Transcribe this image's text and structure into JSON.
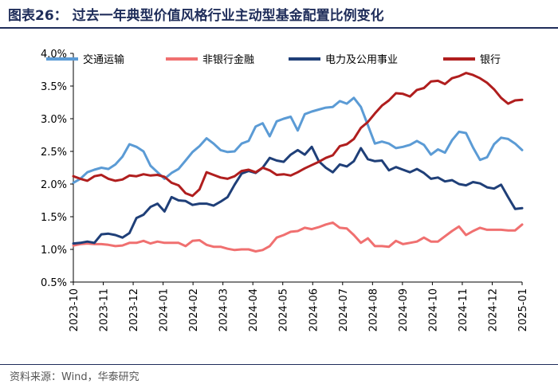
{
  "title": "图表26：  过去一年典型价值风格行业主动型基金配置比例变化",
  "source": "资料来源：Wind，华泰研究",
  "chart_data": {
    "type": "line",
    "xlabel": "",
    "ylabel": "",
    "ylim": [
      0.5,
      4.0
    ],
    "yticks": [
      "0.5%",
      "1.0%",
      "1.5%",
      "2.0%",
      "2.5%",
      "3.0%",
      "3.5%",
      "4.0%"
    ],
    "xticks": [
      "2023-10",
      "2023-11",
      "2023-12",
      "2024-01",
      "2024-02",
      "2024-03",
      "2024-04",
      "2024-05",
      "2024-06",
      "2024-07",
      "2024-08",
      "2024-09",
      "2024-10",
      "2024-11",
      "2024-12",
      "2025-01"
    ],
    "grid": false,
    "legend_position": "top",
    "series": [
      {
        "name": "交通运输",
        "color": "#5b9bd5",
        "values": [
          2.02,
          2.08,
          2.18,
          2.22,
          2.25,
          2.23,
          2.3,
          2.42,
          2.61,
          2.57,
          2.5,
          2.28,
          2.18,
          2.08,
          2.17,
          2.23,
          2.36,
          2.49,
          2.58,
          2.7,
          2.62,
          2.52,
          2.49,
          2.5,
          2.62,
          2.66,
          2.88,
          2.93,
          2.73,
          2.96,
          3.0,
          3.03,
          2.82,
          3.07,
          3.11,
          3.14,
          3.17,
          3.18,
          3.27,
          3.23,
          3.32,
          3.18,
          2.9,
          2.62,
          2.65,
          2.62,
          2.55,
          2.57,
          2.6,
          2.66,
          2.6,
          2.45,
          2.53,
          2.48,
          2.67,
          2.8,
          2.78,
          2.56,
          2.37,
          2.41,
          2.61,
          2.71,
          2.69,
          2.62,
          2.52
        ]
      },
      {
        "name": "非银行金融",
        "color": "#f07070",
        "values": [
          1.06,
          1.08,
          1.09,
          1.08,
          1.08,
          1.07,
          1.05,
          1.06,
          1.1,
          1.1,
          1.13,
          1.09,
          1.12,
          1.1,
          1.1,
          1.1,
          1.05,
          1.13,
          1.14,
          1.07,
          1.04,
          1.04,
          1.01,
          0.99,
          1.0,
          1.0,
          0.97,
          0.99,
          1.05,
          1.18,
          1.22,
          1.27,
          1.28,
          1.33,
          1.31,
          1.34,
          1.38,
          1.41,
          1.33,
          1.32,
          1.22,
          1.1,
          1.17,
          1.05,
          1.05,
          1.04,
          1.13,
          1.08,
          1.1,
          1.12,
          1.18,
          1.12,
          1.12,
          1.2,
          1.28,
          1.35,
          1.22,
          1.28,
          1.33,
          1.3,
          1.3,
          1.3,
          1.29,
          1.29,
          1.38
        ]
      },
      {
        "name": "电力及公用事业",
        "color": "#1f3f78",
        "values": [
          1.09,
          1.1,
          1.12,
          1.1,
          1.23,
          1.24,
          1.22,
          1.18,
          1.25,
          1.48,
          1.53,
          1.65,
          1.7,
          1.58,
          1.8,
          1.75,
          1.74,
          1.68,
          1.7,
          1.7,
          1.67,
          1.73,
          1.8,
          1.99,
          2.16,
          2.2,
          2.17,
          2.25,
          2.4,
          2.36,
          2.34,
          2.45,
          2.52,
          2.45,
          2.57,
          2.35,
          2.25,
          2.18,
          2.3,
          2.27,
          2.35,
          2.55,
          2.38,
          2.35,
          2.36,
          2.21,
          2.26,
          2.22,
          2.18,
          2.23,
          2.17,
          2.08,
          2.1,
          2.04,
          2.06,
          2.0,
          1.98,
          2.03,
          2.01,
          1.95,
          1.93,
          1.99,
          1.8,
          1.62,
          1.63
        ]
      },
      {
        "name": "银行",
        "color": "#b01e1e",
        "values": [
          2.12,
          2.08,
          2.05,
          2.12,
          2.14,
          2.08,
          2.05,
          2.07,
          2.13,
          2.12,
          2.15,
          2.13,
          2.14,
          2.11,
          2.02,
          1.98,
          1.86,
          1.82,
          1.92,
          2.18,
          2.14,
          2.1,
          2.08,
          2.12,
          2.2,
          2.22,
          2.18,
          2.25,
          2.21,
          2.14,
          2.15,
          2.13,
          2.18,
          2.24,
          2.29,
          2.34,
          2.4,
          2.44,
          2.58,
          2.61,
          2.69,
          2.86,
          2.95,
          3.08,
          3.2,
          3.28,
          3.39,
          3.38,
          3.34,
          3.44,
          3.47,
          3.57,
          3.58,
          3.53,
          3.62,
          3.65,
          3.7,
          3.67,
          3.62,
          3.55,
          3.45,
          3.32,
          3.23,
          3.28,
          3.29
        ]
      }
    ]
  }
}
